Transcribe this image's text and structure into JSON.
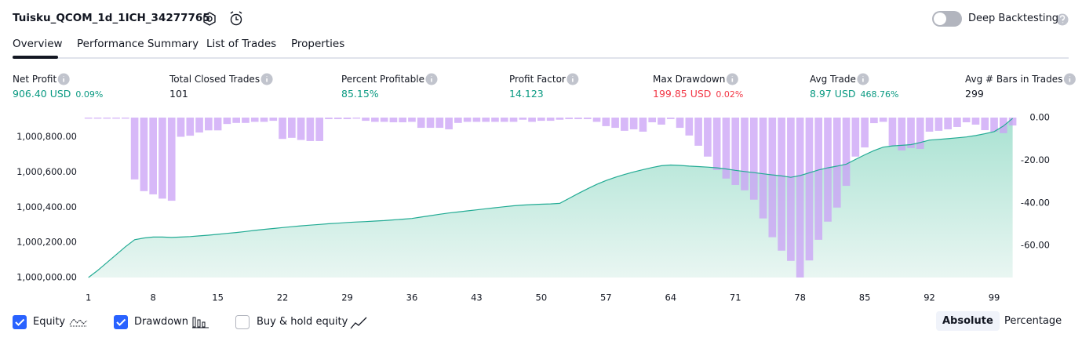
{
  "header": {
    "title": "Tuisku_QCOM_1d_1ICH_34277765",
    "deep_backtesting": "Deep Backtesting"
  },
  "tabs": [
    "Overview",
    "Performance Summary",
    "List of Trades",
    "Properties"
  ],
  "metrics": [
    {
      "label": "Net Profit",
      "value": "906.40 USD",
      "change": "0.09%",
      "color": "#089981"
    },
    {
      "label": "Total Closed Trades",
      "value": "101",
      "color": "#131722"
    },
    {
      "label": "Percent Profitable",
      "value": "85.15%",
      "color": "#089981"
    },
    {
      "label": "Profit Factor",
      "value": "14.123",
      "color": "#089981"
    },
    {
      "label": "Max Drawdown",
      "value": "199.85 USD",
      "change": "0.02%",
      "color": "#f23645"
    },
    {
      "label": "Avg Trade",
      "value": "8.97 USD",
      "change": "468.76%",
      "color": "#089981"
    },
    {
      "label": "Avg # Bars in Trades",
      "value": "299",
      "color": "#131722"
    }
  ],
  "chart_data": {
    "type": "combo",
    "x": [
      1,
      2,
      3,
      4,
      5,
      6,
      7,
      8,
      9,
      10,
      11,
      12,
      13,
      14,
      15,
      16,
      17,
      18,
      19,
      20,
      21,
      22,
      23,
      24,
      25,
      26,
      27,
      28,
      29,
      30,
      31,
      32,
      33,
      34,
      35,
      36,
      37,
      38,
      39,
      40,
      41,
      42,
      43,
      44,
      45,
      46,
      47,
      48,
      49,
      50,
      51,
      52,
      53,
      54,
      55,
      56,
      57,
      58,
      59,
      60,
      61,
      62,
      63,
      64,
      65,
      66,
      67,
      68,
      69,
      70,
      71,
      72,
      73,
      74,
      75,
      76,
      77,
      78,
      79,
      80,
      81,
      82,
      83,
      84,
      85,
      86,
      87,
      88,
      89,
      90,
      91,
      92,
      93,
      94,
      95,
      96,
      97,
      98,
      99,
      100,
      101
    ],
    "series": [
      {
        "name": "Equity",
        "color": "#22ab94",
        "checked": true,
        "values": [
          1000000,
          1000040,
          1000085,
          1000130,
          1000175,
          1000215,
          1000225,
          1000230,
          1000230,
          1000228,
          1000230,
          1000233,
          1000237,
          1000241,
          1000246,
          1000251,
          1000256,
          1000262,
          1000268,
          1000274,
          1000279,
          1000284,
          1000289,
          1000294,
          1000298,
          1000302,
          1000306,
          1000309,
          1000313,
          1000316,
          1000318,
          1000321,
          1000324,
          1000328,
          1000332,
          1000336,
          1000344,
          1000352,
          1000360,
          1000367,
          1000373,
          1000379,
          1000385,
          1000391,
          1000397,
          1000403,
          1000408,
          1000412,
          1000415,
          1000417,
          1000419,
          1000422,
          1000450,
          1000478,
          1000505,
          1000530,
          1000552,
          1000570,
          1000586,
          1000601,
          1000614,
          1000626,
          1000636,
          1000640,
          1000638,
          1000634,
          1000631,
          1000628,
          1000624,
          1000618,
          1000610,
          1000603,
          1000597,
          1000590,
          1000584,
          1000578,
          1000570,
          1000580,
          1000596,
          1000612,
          1000624,
          1000634,
          1000645,
          1000672,
          1000698,
          1000722,
          1000742,
          1000749,
          1000752,
          1000756,
          1000768,
          1000782,
          1000786,
          1000790,
          1000795,
          1000800,
          1000808,
          1000818,
          1000830,
          1000862,
          1000906
        ]
      },
      {
        "name": "Drawdown",
        "color": "#c9a0f5",
        "checked": true,
        "axis": "y2",
        "values": [
          -0.5,
          -0.5,
          -0.5,
          -0.5,
          -0.5,
          -29,
          -34.5,
          -36,
          -38,
          -39,
          -9,
          -8.5,
          -7,
          -6,
          -6,
          -3,
          -2.5,
          -2.5,
          -2,
          -2,
          -1.5,
          -10,
          -9.5,
          -10.5,
          -11,
          -11,
          -0.7,
          -0.7,
          -0.7,
          -0.5,
          -1.5,
          -2,
          -2,
          -2.2,
          -2.2,
          -2,
          -4.8,
          -4.8,
          -4.8,
          -5.5,
          -2.5,
          -2,
          -2,
          -2,
          -2,
          -2,
          -2,
          -1,
          -2,
          -1.5,
          -1.5,
          -1,
          -0.7,
          -0.7,
          -0.7,
          -2,
          -4,
          -4.8,
          -6.2,
          -5.5,
          -6.6,
          -2.2,
          -3.3,
          -0.7,
          -4.8,
          -8.4,
          -13.2,
          -18.3,
          -24.6,
          -28.6,
          -31.6,
          -34.1,
          -38.5,
          -47.3,
          -56.1,
          -62.4,
          -67.2,
          -75,
          -67,
          -57.3,
          -48.8,
          -42.2,
          -32,
          -18.3,
          -14,
          -2.6,
          -2,
          -13.2,
          -15.4,
          -14.3,
          -14.7,
          -6.6,
          -6.2,
          -5.5,
          -4.4,
          -2.2,
          -3.3,
          -5.9,
          -6.6,
          -7.3,
          -3.7
        ]
      }
    ],
    "buy_hold": {
      "label": "Buy & hold equity",
      "checked": false
    },
    "xlim": [
      0.6,
      101.8
    ],
    "xticks": [
      1,
      8,
      15,
      22,
      29,
      36,
      43,
      50,
      57,
      64,
      71,
      78,
      85,
      92,
      99
    ],
    "ylim": [
      1000000,
      1000910
    ],
    "yticks": [
      {
        "value": 1000000,
        "label": "1,000,000.00"
      },
      {
        "value": 1000200,
        "label": "1,000,200.00"
      },
      {
        "value": 1000400,
        "label": "1,000,400.00"
      },
      {
        "value": 1000600,
        "label": "1,000,600.00"
      },
      {
        "value": 1000800,
        "label": "1,000,800.00"
      }
    ],
    "y2lim": [
      -75,
      0
    ],
    "y2ticks": [
      {
        "value": 0,
        "label": "0.00"
      },
      {
        "value": -20,
        "label": "-20.00"
      },
      {
        "value": -40,
        "label": "-40.00"
      },
      {
        "value": -60,
        "label": "-60.00"
      }
    ]
  },
  "modes": [
    "Absolute",
    "Percentage"
  ]
}
